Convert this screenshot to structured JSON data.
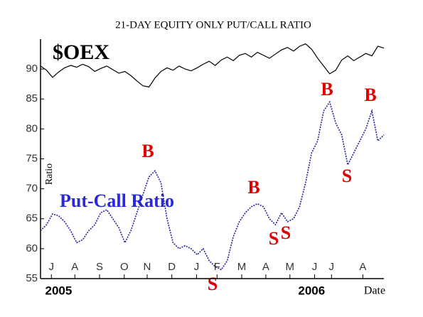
{
  "chart_data": {
    "type": "line",
    "title": "21-DAY EQUITY ONLY PUT/CALL RATIO",
    "ylabel": "Ratio",
    "xlabel": "Date",
    "ylim": [
      55,
      95
    ],
    "yticks": [
      55,
      60,
      65,
      70,
      75,
      80,
      85,
      90
    ],
    "xlim": [
      0,
      57
    ],
    "xticks": [
      {
        "value": 1.8,
        "label": "J"
      },
      {
        "value": 5.7,
        "label": "A"
      },
      {
        "value": 9.8,
        "label": "S"
      },
      {
        "value": 13.9,
        "label": "O"
      },
      {
        "value": 17.7,
        "label": "N"
      },
      {
        "value": 21.8,
        "label": "D"
      },
      {
        "value": 25.9,
        "label": "J"
      },
      {
        "value": 29.3,
        "label": "F"
      },
      {
        "value": 33.4,
        "label": "M"
      },
      {
        "value": 37.4,
        "label": "A"
      },
      {
        "value": 41.4,
        "label": "M"
      },
      {
        "value": 45.5,
        "label": "J"
      },
      {
        "value": 48.3,
        "label": "J"
      },
      {
        "value": 53.5,
        "label": "A"
      }
    ],
    "years": [
      {
        "value": 3,
        "label": "2005"
      },
      {
        "value": 45,
        "label": "2006"
      }
    ],
    "series": [
      {
        "name": "$OEX",
        "color": "#000000",
        "values": [
          90.5,
          89.8,
          88.6,
          89.5,
          90.2,
          90.6,
          90.3,
          90.8,
          90.4,
          89.6,
          90.1,
          90.5,
          89.9,
          89.3,
          89.6,
          88.9,
          88.0,
          87.2,
          87.0,
          88.5,
          89.6,
          90.2,
          89.8,
          90.5,
          90.0,
          89.7,
          90.2,
          90.8,
          91.3,
          90.6,
          91.5,
          92.0,
          91.4,
          92.3,
          92.6,
          92.0,
          92.8,
          92.3,
          91.8,
          92.5,
          93.2,
          93.6,
          93.0,
          93.8,
          94.2,
          93.3,
          91.8,
          90.5,
          89.2,
          89.8,
          91.5,
          92.2,
          91.4,
          92.0,
          92.6,
          92.2,
          93.8,
          93.5
        ]
      },
      {
        "name": "Put-Call Ratio",
        "color": "#2020a0",
        "values": [
          63,
          64,
          65.8,
          65.5,
          64.5,
          63,
          61,
          61.5,
          63,
          64,
          66,
          66.5,
          65,
          63.5,
          61,
          63,
          66,
          69,
          72,
          73,
          71,
          65,
          61,
          60,
          60.5,
          60,
          59,
          60,
          58,
          57,
          56.5,
          58,
          62,
          64.5,
          66,
          67,
          67.5,
          67,
          65,
          64,
          66,
          64.5,
          65,
          67,
          71,
          76,
          78,
          83,
          84.5,
          81,
          79,
          74,
          76,
          78,
          80,
          83,
          78,
          79
        ]
      }
    ],
    "annotations": [
      "B",
      "B",
      "B",
      "B",
      "S",
      "S",
      "S",
      "S"
    ]
  }
}
